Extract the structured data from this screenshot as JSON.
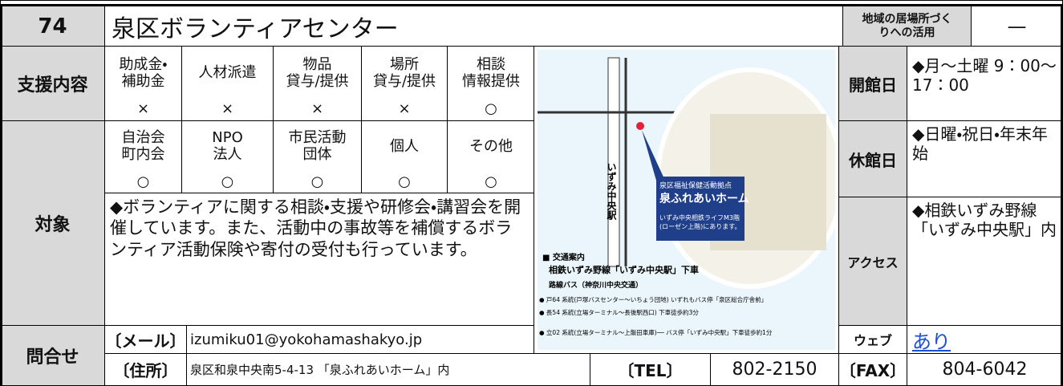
{
  "header": {
    "number": "74",
    "title": "泉区ボランティアセンター",
    "usage_label": "地域の居場所づくりへの活用",
    "usage_value": "—"
  },
  "support": {
    "label": "支援内容",
    "items": [
      {
        "name": "助成金・\n補助金",
        "mark": "×"
      },
      {
        "name": "人材派遣",
        "mark": "×"
      },
      {
        "name": "物品\n貸与/提供",
        "mark": "×"
      },
      {
        "name": "場所\n貸与/提供",
        "mark": "×"
      },
      {
        "name": "相談\n情報提供",
        "mark": "○"
      }
    ]
  },
  "target": {
    "label": "対象",
    "items": [
      {
        "name": "自治会\n町内会",
        "mark": "○"
      },
      {
        "name": "NPO\n法人",
        "mark": "○"
      },
      {
        "name": "市民活動\n団体",
        "mark": "○"
      },
      {
        "name": "個人",
        "mark": "○"
      },
      {
        "name": "その他",
        "mark": "○"
      }
    ],
    "description": "◆ボランティアに関する相談・支援や研修会・講習会を開催しています。また、活動中の事故等を補償するボランティア活動保険や寄付の受付も行っています。"
  },
  "map": {
    "station": "いずみ中央駅",
    "facility": "泉区福祉保健活動拠点\n泉ふれあいホーム",
    "facility_note": "いずみ中央相鉄ライフM3階\n(ローゼン上階)にあります。",
    "access_heading": "■ 交通案内",
    "access_line": "相鉄いずみ野線「いずみ中央駅」下車",
    "bus_heading": "路線バス（神奈川中央交通）",
    "bus_1": "● 戸64 系統(戸塚バスセンター〜いちょう団地) いずれもバス停「泉区総合庁舎前」",
    "bus_2": "● 長54 系統(立場ターミナル〜長後駅西口) 下車徒歩約3分",
    "bus_3": "● 立02 系統(立場ターミナル〜上飯田車庫)── バス停「いずみ中央駅」下車徒歩約1分"
  },
  "hours": {
    "open_label": "開館日",
    "open": "◆月～土曜 9：00～17：00",
    "closed_label": "休館日",
    "closed": "◆日曜・祝日・年末年始",
    "access_label": "アクセス",
    "access": "◆相鉄いずみ野線「いずみ中央駅」内",
    "web_label": "ウェブ",
    "web": "あり"
  },
  "contact": {
    "label": "問合せ",
    "email_label": "〔メール〕",
    "email": "izumiku01@yokohamashakyo.jp",
    "address_label": "〔住所〕",
    "address": "泉区和泉中央南5-4-13 「泉ふれあいホーム」内",
    "tel_label": "〔TEL〕",
    "tel": "802-2150",
    "fax_label": "〔FAX〕",
    "fax": "804-6042"
  }
}
